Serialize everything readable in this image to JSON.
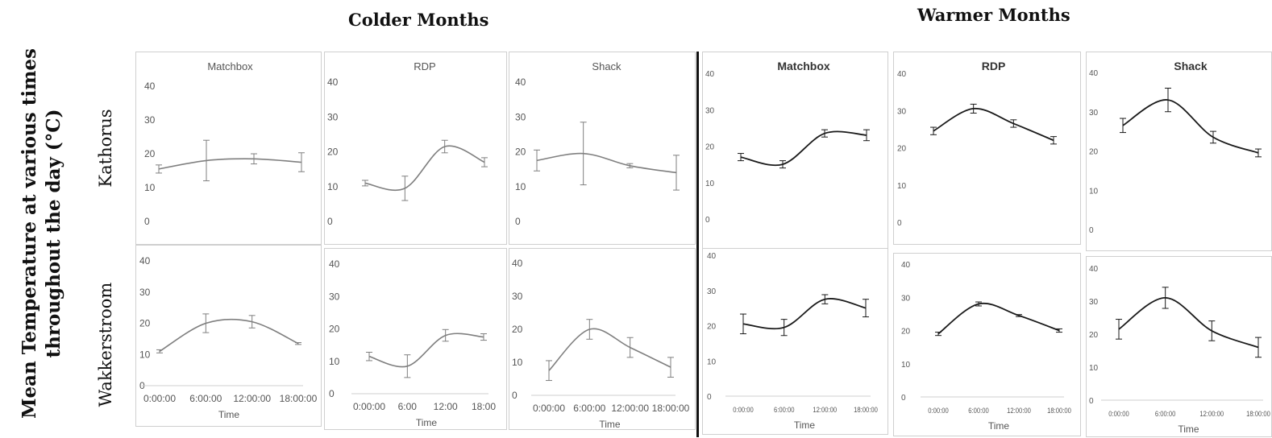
{
  "headers": {
    "colder": "Colder Months",
    "warmer": "Warmer Months"
  },
  "y_axis_title": [
    "Mean Temperature at various times",
    "throughout the day (°C)"
  ],
  "rows": {
    "kathorus": "Kathorus",
    "wakkerstroom": "Wakkerstroom"
  },
  "chart_data": [
    {
      "id": "colder-kathorus-matchbox",
      "type": "line",
      "title": "Matchbox",
      "season": "Colder Months",
      "location": "Kathorus",
      "color": "#7f7f7f",
      "x": [
        0,
        6,
        12,
        18
      ],
      "xticks": [],
      "xlabel": "",
      "yticks": [
        "0",
        "10",
        "20",
        "30",
        "40"
      ],
      "ylim": [
        0,
        40
      ],
      "values": [
        15.5,
        18,
        18.5,
        17.5
      ],
      "errors": [
        1.2,
        6,
        1.5,
        2.8
      ],
      "grid": false
    },
    {
      "id": "colder-kathorus-rdp",
      "type": "line",
      "title": "RDP",
      "season": "Colder Months",
      "location": "Kathorus",
      "color": "#7f7f7f",
      "x": [
        0,
        6,
        12,
        18
      ],
      "xticks": [],
      "xlabel": "",
      "yticks": [
        "0",
        "10",
        "20",
        "30",
        "40"
      ],
      "ylim": [
        0,
        40
      ],
      "values": [
        11,
        9.5,
        21.5,
        17
      ],
      "errors": [
        0.8,
        3.5,
        1.8,
        1.3
      ],
      "grid": false
    },
    {
      "id": "colder-kathorus-shack",
      "type": "line",
      "title": "Shack",
      "season": "Colder Months",
      "location": "Kathorus",
      "color": "#7f7f7f",
      "x": [
        0,
        6,
        12,
        18
      ],
      "xticks": [],
      "xlabel": "",
      "yticks": [
        "0",
        "10",
        "20",
        "30",
        "40"
      ],
      "ylim": [
        0,
        40
      ],
      "values": [
        17.5,
        19.5,
        16,
        14
      ],
      "errors": [
        3,
        9,
        0.6,
        5
      ],
      "grid": false
    },
    {
      "id": "warmer-kathorus-matchbox",
      "type": "line",
      "title": "Matchbox",
      "season": "Warmer Months",
      "location": "Kathorus",
      "color": "#1a1a1a",
      "x": [
        0,
        6,
        12,
        18
      ],
      "xticks": [],
      "xlabel": "",
      "yticks": [
        "0",
        "10",
        "20",
        "30",
        "40"
      ],
      "ylim": [
        0,
        40
      ],
      "values": [
        17,
        15,
        23.5,
        23
      ],
      "errors": [
        1,
        1,
        1,
        1.5
      ],
      "grid": false
    },
    {
      "id": "warmer-kathorus-rdp",
      "type": "line",
      "title": "RDP",
      "season": "Warmer Months",
      "location": "Kathorus",
      "color": "#1a1a1a",
      "x": [
        0,
        6,
        12,
        18
      ],
      "xticks": [],
      "xlabel": "",
      "yticks": [
        "0",
        "10",
        "20",
        "30",
        "40"
      ],
      "ylim": [
        0,
        40
      ],
      "values": [
        24.5,
        30.5,
        26.5,
        22
      ],
      "errors": [
        1,
        1.2,
        1,
        1
      ],
      "grid": false
    },
    {
      "id": "warmer-kathorus-shack",
      "type": "line",
      "title": "Shack",
      "season": "Warmer Months",
      "location": "Kathorus",
      "color": "#1a1a1a",
      "x": [
        0,
        6,
        12,
        18
      ],
      "xticks": [],
      "xlabel": "",
      "yticks": [
        "0",
        "10",
        "20",
        "30",
        "40"
      ],
      "ylim": [
        0,
        40
      ],
      "values": [
        26.5,
        33,
        23.5,
        19.5
      ],
      "errors": [
        1.8,
        3,
        1.5,
        1
      ],
      "grid": false
    },
    {
      "id": "colder-wakkerstroom-matchbox",
      "type": "line",
      "title": "",
      "season": "Colder Months",
      "location": "Wakkerstroom",
      "color": "#7f7f7f",
      "x": [
        0,
        6,
        12,
        18
      ],
      "xticks": [
        "0:00:00",
        "6:00:00",
        "12:00:00",
        "18:00:00"
      ],
      "xlabel": "Time",
      "yticks": [
        "0",
        "10",
        "20",
        "30",
        "40"
      ],
      "ylim": [
        0,
        40
      ],
      "values": [
        11,
        20,
        20.5,
        13.5
      ],
      "errors": [
        0.5,
        3,
        2,
        0.3
      ],
      "grid": false
    },
    {
      "id": "colder-wakkerstroom-rdp",
      "type": "line",
      "title": "",
      "season": "Colder Months",
      "location": "Wakkerstroom",
      "color": "#7f7f7f",
      "x": [
        0,
        6,
        12,
        18
      ],
      "xticks": [
        "0:00:00",
        "6:00",
        "12:00",
        "18:00"
      ],
      "xlabel": "Time",
      "yticks": [
        "0",
        "10",
        "20",
        "30",
        "40"
      ],
      "ylim": [
        0,
        40
      ],
      "values": [
        11.5,
        8.5,
        18,
        17.5
      ],
      "errors": [
        1.3,
        3.5,
        1.8,
        1
      ],
      "grid": false
    },
    {
      "id": "colder-wakkerstroom-shack",
      "type": "line",
      "title": "",
      "season": "Colder Months",
      "location": "Wakkerstroom",
      "color": "#7f7f7f",
      "x": [
        0,
        6,
        12,
        18
      ],
      "xticks": [
        "0:00:00",
        "6:00:00",
        "12:00:00",
        "18:00:00"
      ],
      "xlabel": "Time",
      "yticks": [
        "0",
        "10",
        "20",
        "30",
        "40"
      ],
      "ylim": [
        0,
        40
      ],
      "values": [
        7.5,
        20,
        14.5,
        8.5
      ],
      "errors": [
        3,
        3,
        3,
        3
      ],
      "grid": false
    },
    {
      "id": "warmer-wakkerstroom-matchbox",
      "type": "line",
      "title": "",
      "season": "Warmer Months",
      "location": "Wakkerstroom",
      "color": "#1a1a1a",
      "x": [
        0,
        6,
        12,
        18
      ],
      "xticks": [
        "0:00:00",
        "6:00:00",
        "12:00:00",
        "18:00:00"
      ],
      "xlabel": "Time",
      "yticks": [
        "0",
        "10",
        "20",
        "30",
        "40"
      ],
      "ylim": [
        0,
        40
      ],
      "values": [
        20.5,
        19.5,
        27.5,
        25
      ],
      "errors": [
        2.8,
        2.3,
        1.3,
        2.5
      ],
      "grid": false
    },
    {
      "id": "warmer-wakkerstroom-rdp",
      "type": "line",
      "title": "",
      "season": "Warmer Months",
      "location": "Wakkerstroom",
      "color": "#1a1a1a",
      "x": [
        0,
        6,
        12,
        18
      ],
      "xticks": [
        "0:00:00",
        "6:00:00",
        "12:00:00",
        "18:00:00"
      ],
      "xlabel": "Time",
      "yticks": [
        "0",
        "10",
        "20",
        "30",
        "40"
      ],
      "ylim": [
        0,
        40
      ],
      "values": [
        19,
        28,
        24.5,
        20
      ],
      "errors": [
        0.5,
        0.6,
        0.3,
        0.5
      ],
      "grid": false
    },
    {
      "id": "warmer-wakkerstroom-shack",
      "type": "line",
      "title": "",
      "season": "Warmer Months",
      "location": "Wakkerstroom",
      "color": "#1a1a1a",
      "x": [
        0,
        6,
        12,
        18
      ],
      "xticks": [
        "0:00:00",
        "6:00:00",
        "12:00:00",
        "18:00:00"
      ],
      "xlabel": "Time",
      "yticks": [
        "0",
        "10",
        "20",
        "30",
        "40"
      ],
      "ylim": [
        0,
        40
      ],
      "values": [
        21.5,
        31,
        21,
        16
      ],
      "errors": [
        3,
        3.2,
        3,
        3
      ],
      "grid": false
    }
  ]
}
